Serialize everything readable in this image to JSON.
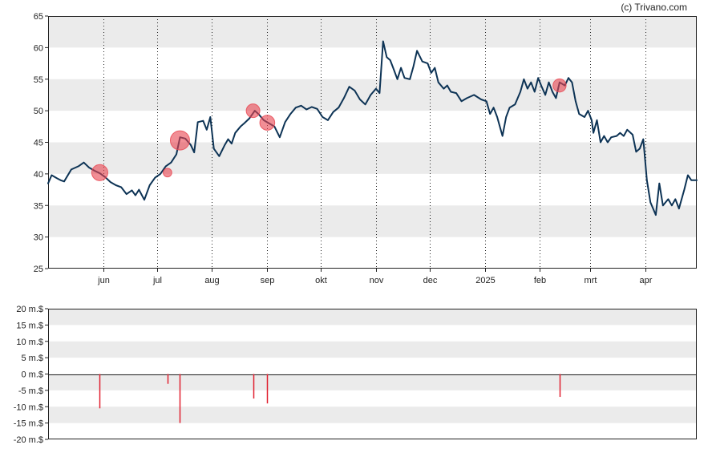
{
  "copyright": "(c) Trivano.com",
  "chart_data": [
    {
      "type": "line",
      "ylim": [
        25,
        65
      ],
      "yticks": [
        25,
        30,
        35,
        40,
        45,
        50,
        55,
        60,
        65
      ],
      "ytick_labels": [
        "25",
        "30",
        "35",
        "40",
        "45",
        "50",
        "55",
        "60",
        "65"
      ],
      "x_range": [
        "2024-05-01",
        "2025-04-30"
      ],
      "x_ticks": [
        {
          "label": "jun",
          "date": "2024-06-01"
        },
        {
          "label": "jul",
          "date": "2024-07-01"
        },
        {
          "label": "aug",
          "date": "2024-08-01"
        },
        {
          "label": "sep",
          "date": "2024-09-01"
        },
        {
          "label": "okt",
          "date": "2024-10-01"
        },
        {
          "label": "nov",
          "date": "2024-11-01"
        },
        {
          "label": "dec",
          "date": "2024-12-01"
        },
        {
          "label": "2025",
          "date": "2025-01-01"
        },
        {
          "label": "feb",
          "date": "2025-02-01"
        },
        {
          "label": "mrt",
          "date": "2025-03-01"
        },
        {
          "label": "apr",
          "date": "2025-04-01"
        }
      ],
      "band_color": "#ebebeb",
      "line_color": "#0d3355",
      "marker_color": "#e8434f",
      "grid_vertical": "dotted",
      "series": [
        {
          "points": [
            [
              "2024-05-01",
              38.5
            ],
            [
              "2024-05-03",
              39.8
            ],
            [
              "2024-05-06",
              39.3
            ],
            [
              "2024-05-08",
              39.0
            ],
            [
              "2024-05-10",
              38.8
            ],
            [
              "2024-05-14",
              40.7
            ],
            [
              "2024-05-18",
              41.2
            ],
            [
              "2024-05-21",
              41.8
            ],
            [
              "2024-05-24",
              41.0
            ],
            [
              "2024-05-27",
              40.5
            ],
            [
              "2024-05-30",
              40.1
            ],
            [
              "2024-06-02",
              39.5
            ],
            [
              "2024-06-05",
              38.7
            ],
            [
              "2024-06-08",
              38.2
            ],
            [
              "2024-06-11",
              37.9
            ],
            [
              "2024-06-14",
              36.8
            ],
            [
              "2024-06-17",
              37.4
            ],
            [
              "2024-06-19",
              36.6
            ],
            [
              "2024-06-21",
              37.5
            ],
            [
              "2024-06-24",
              35.9
            ],
            [
              "2024-06-27",
              38.2
            ],
            [
              "2024-06-30",
              39.4
            ],
            [
              "2024-07-03",
              40.0
            ],
            [
              "2024-07-06",
              41.2
            ],
            [
              "2024-07-09",
              41.8
            ],
            [
              "2024-07-12",
              43.1
            ],
            [
              "2024-07-14",
              45.8
            ],
            [
              "2024-07-17",
              45.6
            ],
            [
              "2024-07-20",
              44.6
            ],
            [
              "2024-07-22",
              43.4
            ],
            [
              "2024-07-24",
              48.2
            ],
            [
              "2024-07-27",
              48.4
            ],
            [
              "2024-07-29",
              47.0
            ],
            [
              "2024-07-31",
              49.0
            ],
            [
              "2024-08-02",
              44.0
            ],
            [
              "2024-08-05",
              42.8
            ],
            [
              "2024-08-08",
              44.5
            ],
            [
              "2024-08-10",
              45.5
            ],
            [
              "2024-08-12",
              44.8
            ],
            [
              "2024-08-14",
              46.5
            ],
            [
              "2024-08-17",
              47.5
            ],
            [
              "2024-08-19",
              48.0
            ],
            [
              "2024-08-22",
              48.8
            ],
            [
              "2024-08-25",
              50.0
            ],
            [
              "2024-08-27",
              49.5
            ],
            [
              "2024-08-30",
              48.5
            ],
            [
              "2024-09-02",
              48.0
            ],
            [
              "2024-09-05",
              47.5
            ],
            [
              "2024-09-08",
              45.8
            ],
            [
              "2024-09-11",
              48.2
            ],
            [
              "2024-09-14",
              49.5
            ],
            [
              "2024-09-17",
              50.5
            ],
            [
              "2024-09-20",
              50.8
            ],
            [
              "2024-09-23",
              50.2
            ],
            [
              "2024-09-26",
              50.6
            ],
            [
              "2024-09-29",
              50.3
            ],
            [
              "2024-10-02",
              49.0
            ],
            [
              "2024-10-05",
              48.5
            ],
            [
              "2024-10-08",
              49.8
            ],
            [
              "2024-10-11",
              50.5
            ],
            [
              "2024-10-14",
              52.0
            ],
            [
              "2024-10-17",
              53.8
            ],
            [
              "2024-10-20",
              53.2
            ],
            [
              "2024-10-23",
              51.8
            ],
            [
              "2024-10-26",
              51.0
            ],
            [
              "2024-10-29",
              52.5
            ],
            [
              "2024-11-01",
              53.5
            ],
            [
              "2024-11-03",
              52.8
            ],
            [
              "2024-11-05",
              61.0
            ],
            [
              "2024-11-07",
              58.5
            ],
            [
              "2024-11-09",
              58.0
            ],
            [
              "2024-11-11",
              56.5
            ],
            [
              "2024-11-13",
              55.0
            ],
            [
              "2024-11-15",
              56.8
            ],
            [
              "2024-11-17",
              55.2
            ],
            [
              "2024-11-20",
              55.0
            ],
            [
              "2024-11-22",
              57.0
            ],
            [
              "2024-11-24",
              59.5
            ],
            [
              "2024-11-27",
              57.8
            ],
            [
              "2024-11-30",
              57.5
            ],
            [
              "2024-12-02",
              56.0
            ],
            [
              "2024-12-04",
              56.8
            ],
            [
              "2024-12-06",
              54.5
            ],
            [
              "2024-12-09",
              53.5
            ],
            [
              "2024-12-11",
              54.0
            ],
            [
              "2024-12-13",
              53.0
            ],
            [
              "2024-12-16",
              52.8
            ],
            [
              "2024-12-19",
              51.5
            ],
            [
              "2024-12-22",
              52.0
            ],
            [
              "2024-12-26",
              52.5
            ],
            [
              "2024-12-30",
              51.8
            ],
            [
              "2025-01-02",
              51.5
            ],
            [
              "2025-01-04",
              49.5
            ],
            [
              "2025-01-06",
              50.5
            ],
            [
              "2025-01-08",
              49.0
            ],
            [
              "2025-01-10",
              47.0
            ],
            [
              "2025-01-11",
              46.0
            ],
            [
              "2025-01-13",
              49.0
            ],
            [
              "2025-01-15",
              50.5
            ],
            [
              "2025-01-18",
              51.0
            ],
            [
              "2025-01-21",
              53.0
            ],
            [
              "2025-01-23",
              55.0
            ],
            [
              "2025-01-25",
              53.5
            ],
            [
              "2025-01-27",
              54.5
            ],
            [
              "2025-01-29",
              53.0
            ],
            [
              "2025-01-31",
              55.2
            ],
            [
              "2025-02-02",
              53.8
            ],
            [
              "2025-02-04",
              52.5
            ],
            [
              "2025-02-06",
              54.5
            ],
            [
              "2025-02-08",
              53.0
            ],
            [
              "2025-02-10",
              52.0
            ],
            [
              "2025-02-12",
              54.5
            ],
            [
              "2025-02-15",
              54.0
            ],
            [
              "2025-02-17",
              55.2
            ],
            [
              "2025-02-19",
              54.5
            ],
            [
              "2025-02-21",
              51.5
            ],
            [
              "2025-02-23",
              49.5
            ],
            [
              "2025-02-26",
              49.0
            ],
            [
              "2025-02-28",
              50.0
            ],
            [
              "2025-03-02",
              48.5
            ],
            [
              "2025-03-03",
              46.5
            ],
            [
              "2025-03-05",
              48.5
            ],
            [
              "2025-03-07",
              45.0
            ],
            [
              "2025-03-09",
              46.0
            ],
            [
              "2025-03-11",
              45.0
            ],
            [
              "2025-03-13",
              45.8
            ],
            [
              "2025-03-16",
              46.0
            ],
            [
              "2025-03-18",
              46.5
            ],
            [
              "2025-03-20",
              46.0
            ],
            [
              "2025-03-22",
              47.0
            ],
            [
              "2025-03-25",
              46.2
            ],
            [
              "2025-03-27",
              43.5
            ],
            [
              "2025-03-29",
              44.0
            ],
            [
              "2025-03-31",
              45.5
            ],
            [
              "2025-04-02",
              39.0
            ],
            [
              "2025-04-04",
              35.5
            ],
            [
              "2025-04-07",
              33.5
            ],
            [
              "2025-04-09",
              38.5
            ],
            [
              "2025-04-11",
              35.0
            ],
            [
              "2025-04-14",
              36.0
            ],
            [
              "2025-04-16",
              35.0
            ],
            [
              "2025-04-18",
              36.0
            ],
            [
              "2025-04-20",
              34.5
            ],
            [
              "2025-04-23",
              37.5
            ],
            [
              "2025-04-25",
              39.8
            ],
            [
              "2025-04-27",
              39.0
            ],
            [
              "2025-04-30",
              39.0
            ]
          ]
        }
      ],
      "markers": [
        {
          "date": "2024-05-30",
          "value": 40.2,
          "amount": -10.5
        },
        {
          "date": "2024-07-07",
          "value": 40.2,
          "amount": -3.0
        },
        {
          "date": "2024-07-14",
          "value": 45.3,
          "amount": -15.0
        },
        {
          "date": "2024-08-24",
          "value": 50.0,
          "amount": -7.5
        },
        {
          "date": "2024-09-01",
          "value": 48.1,
          "amount": -9.0
        },
        {
          "date": "2025-02-12",
          "value": 54.0,
          "amount": -7.0
        }
      ]
    },
    {
      "type": "bar",
      "ylim": [
        -20,
        20
      ],
      "yticks": [
        -20,
        -15,
        -10,
        -5,
        0,
        5,
        10,
        15,
        20
      ],
      "ytick_labels": [
        "-20 m.$",
        "-15 m.$",
        "-10 m.$",
        "-5 m.$",
        "0 m.$",
        "5 m.$",
        "10 m.$",
        "15 m.$",
        "20 m.$"
      ],
      "x_range": [
        "2024-05-01",
        "2025-04-30"
      ],
      "bar_color": "#e02030",
      "band_color": "#ebebeb",
      "bars": [
        {
          "date": "2024-05-30",
          "value": -10.5
        },
        {
          "date": "2024-07-07",
          "value": -3.0
        },
        {
          "date": "2024-07-14",
          "value": -15.0
        },
        {
          "date": "2024-08-24",
          "value": -7.5
        },
        {
          "date": "2024-09-01",
          "value": -9.0
        },
        {
          "date": "2025-02-12",
          "value": -7.0
        }
      ]
    }
  ]
}
